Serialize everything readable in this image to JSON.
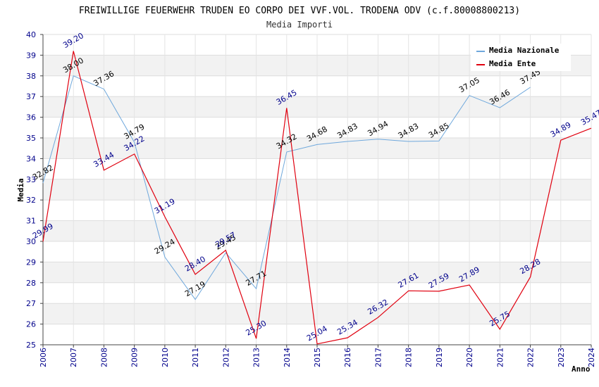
{
  "chart_data": {
    "type": "line",
    "title": "FREIWILLIGE FEUERWEHR TRUDEN EO CORPO DEI VVF.VOL. TRODENA ODV (c.f.80008800213)",
    "subtitle": "Media Importi",
    "xlabel": "Anno",
    "ylabel": "Media",
    "ylim": [
      25,
      40
    ],
    "yticks": [
      "25",
      "26",
      "27",
      "28",
      "29",
      "30",
      "31",
      "32",
      "33",
      "34",
      "35",
      "36",
      "37",
      "38",
      "39",
      "40"
    ],
    "x": [
      "2006",
      "2007",
      "2008",
      "2009",
      "2010",
      "2011",
      "2012",
      "2013",
      "2014",
      "2015",
      "2016",
      "2017",
      "2018",
      "2019",
      "2020",
      "2021",
      "2022",
      "2023",
      "2024"
    ],
    "series": [
      {
        "name": "Media Nazionale",
        "color": "#6fa8dc",
        "values": [
          32.82,
          38.0,
          37.36,
          34.79,
          29.24,
          27.19,
          29.45,
          27.71,
          34.32,
          34.68,
          34.83,
          34.94,
          34.83,
          34.85,
          37.05,
          36.46,
          37.45,
          null,
          null
        ],
        "labels": [
          "32.82",
          "38.00",
          "37.36",
          "34.79",
          "29.24",
          "27.19",
          "29.45",
          "27.71",
          "34.32",
          "34.68",
          "34.83",
          "34.94",
          "34.83",
          "34.85",
          "37.05",
          "36.46",
          "37.45",
          "",
          ""
        ]
      },
      {
        "name": "Media Ente",
        "color": "#e0000f",
        "values": [
          29.99,
          39.2,
          33.44,
          34.22,
          31.19,
          28.4,
          29.57,
          25.3,
          36.45,
          25.04,
          25.34,
          26.32,
          27.61,
          27.59,
          27.89,
          25.75,
          28.28,
          34.89,
          35.47
        ],
        "labels": [
          "29.99",
          "39.20",
          "33.44",
          "34.22",
          "31.19",
          "28.40",
          "29.57",
          "25.30",
          "36.45",
          "25.04",
          "25.34",
          "26.32",
          "27.61",
          "27.59",
          "27.89",
          "25.75",
          "28.28",
          "34.89",
          "35.47"
        ]
      }
    ],
    "legend_position": "top-right",
    "grid": true
  }
}
